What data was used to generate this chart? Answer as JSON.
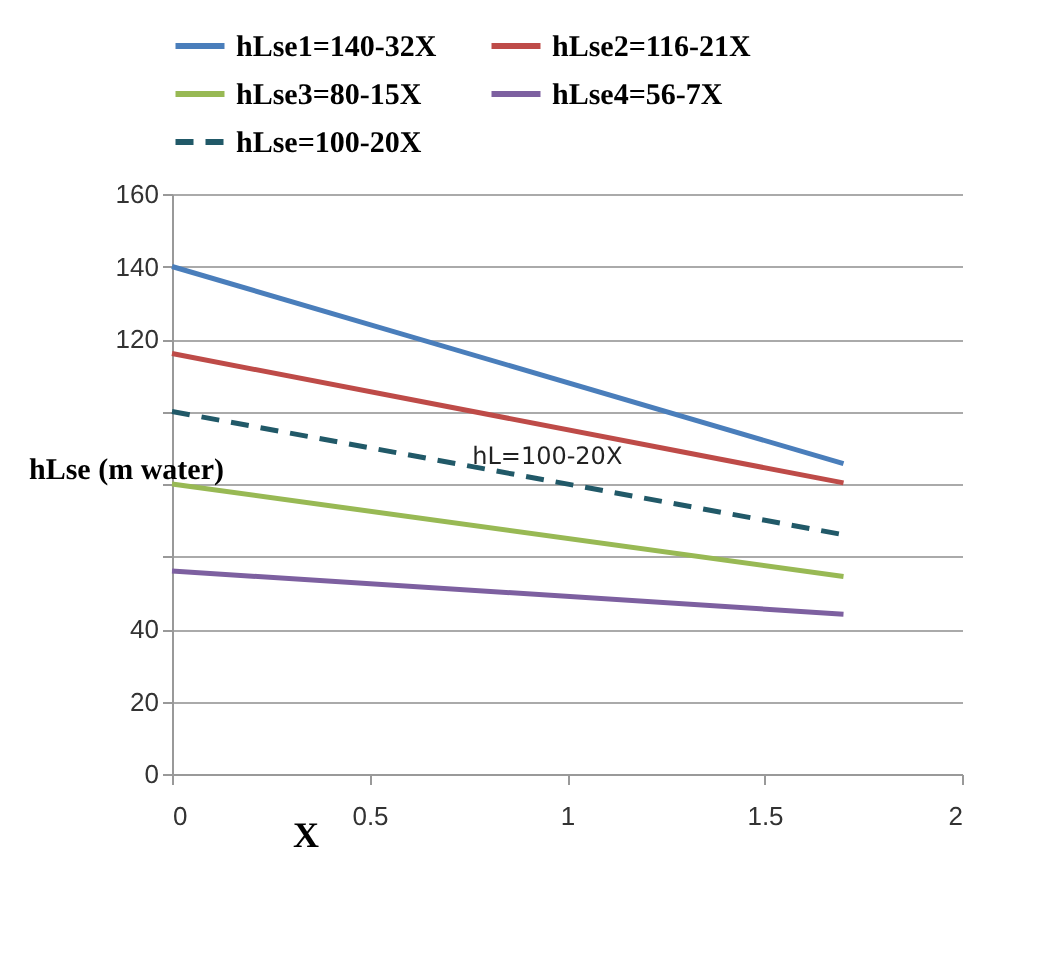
{
  "chart_data": {
    "type": "line",
    "xlabel": "X",
    "ylabel": "hLse (m water)",
    "x": [
      0,
      1.7
    ],
    "series": [
      {
        "name": "hLse1=140-32X",
        "color": "#4a7ebb",
        "values": [
          140,
          85.6
        ]
      },
      {
        "name": "hLse2=116-21X",
        "color": "#be4b48",
        "values": [
          116,
          80.3
        ]
      },
      {
        "name": "hLse3=80-15X",
        "color": "#98b954",
        "values": [
          80,
          54.5
        ]
      },
      {
        "name": "hLse4=56-7X",
        "color": "#7d60a0",
        "values": [
          56,
          44.1
        ]
      },
      {
        "name": "hLse=100-20X",
        "color": "#215968",
        "values": [
          100,
          66
        ],
        "line_style": "dashed"
      }
    ],
    "xlim": [
      0,
      2
    ],
    "xticks": [
      0,
      0.5,
      1,
      1.5,
      2
    ],
    "ylim": [
      0,
      160
    ],
    "yticks": [
      0,
      20,
      40,
      {
        "value": 60,
        "label": null
      },
      {
        "value": 80,
        "label": null
      },
      {
        "value": 100,
        "label": null
      },
      120,
      140,
      160
    ],
    "annotations": [
      {
        "text": "hL=100-20X",
        "x": 0.95,
        "y": 81
      }
    ],
    "grid": "y",
    "legend": "top",
    "marker": "none"
  }
}
